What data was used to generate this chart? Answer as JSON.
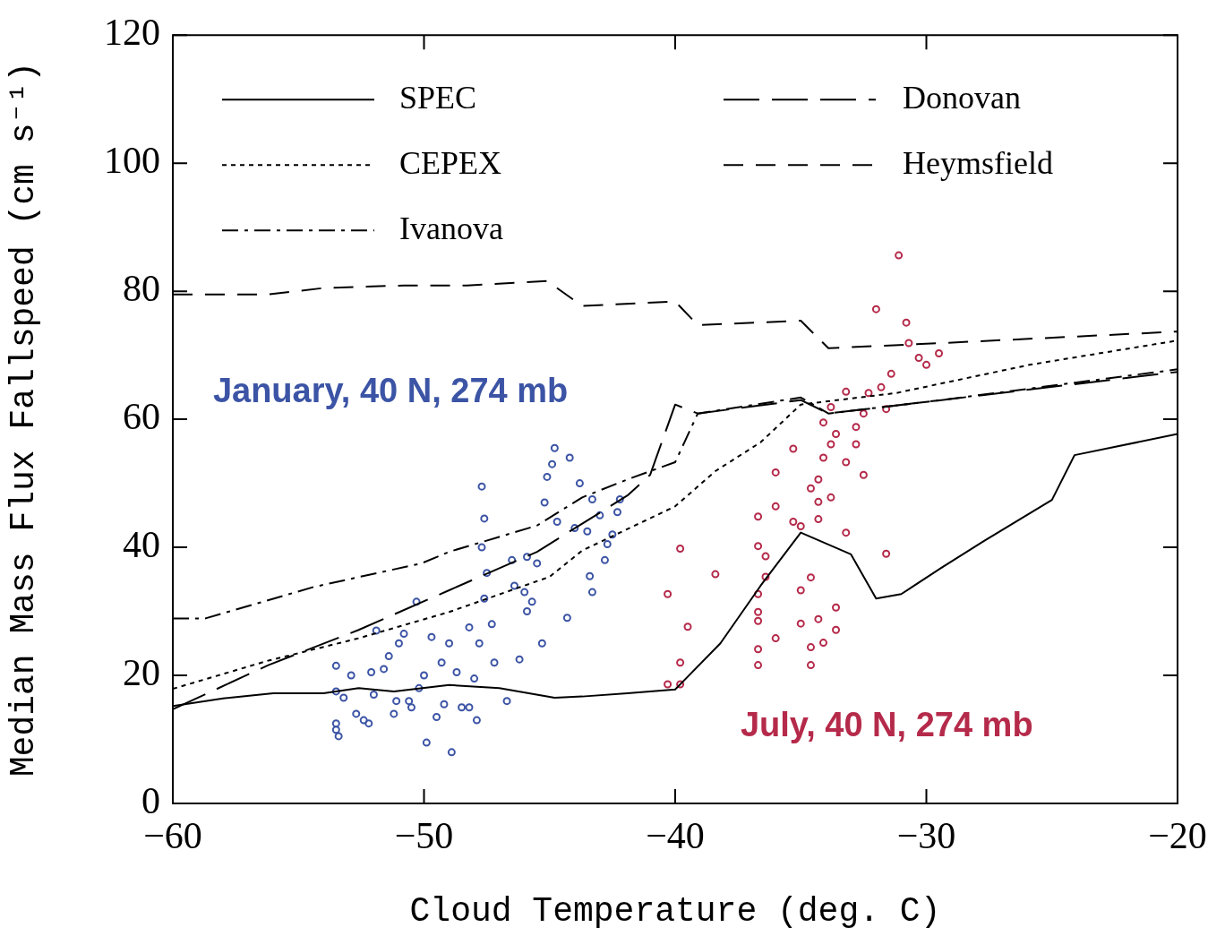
{
  "chart_data": {
    "type": "line",
    "xlabel": "Cloud Temperature (deg. C)",
    "ylabel": "Median Mass Flux Fallspeed (cm s⁻¹)",
    "xlim": [
      -60,
      -20
    ],
    "xticks": [
      -60,
      -50,
      -40,
      -30,
      -20
    ],
    "ylim": [
      0,
      120
    ],
    "yticks": [
      0,
      20,
      40,
      60,
      80,
      100,
      120
    ],
    "grid": false,
    "legend": "top",
    "marker": "none",
    "series": [
      {
        "name": "SPEC",
        "color": "#000000",
        "line_style": "solid",
        "x": [
          -60,
          -58,
          -56,
          -54,
          -52.6,
          -51.2,
          -49,
          -47,
          -44.8,
          -43.7,
          -41.9,
          -40,
          -38.2,
          -36.6,
          -35,
          -33,
          -32,
          -31,
          -29.4,
          -27.7,
          -25,
          -24.1,
          -20
        ],
        "values": [
          15.2,
          16.4,
          17.2,
          17.2,
          18,
          17.5,
          18.5,
          18,
          16.5,
          16.7,
          17.2,
          17.8,
          25,
          34,
          42.3,
          38.9,
          32,
          32.7,
          36.8,
          41,
          47.4,
          54.4,
          57.7
        ]
      },
      {
        "name": "CEPEX",
        "color": "#000000",
        "line_style": "dotted",
        "x": [
          -60,
          -56.2,
          -52.6,
          -49,
          -45,
          -43.7,
          -40,
          -38.4,
          -36.6,
          -35,
          -31.2,
          -25.9,
          -20
        ],
        "values": [
          17.9,
          22.3,
          25.8,
          29.9,
          35.4,
          39.5,
          46.4,
          51.9,
          56.4,
          62.3,
          64.1,
          68.5,
          72.3
        ]
      },
      {
        "name": "Ivanova",
        "color": "#000000",
        "line_style": "dashdot",
        "x": [
          -60,
          -58.7,
          -54.4,
          -50.1,
          -49,
          -45.5,
          -43.7,
          -41.9,
          -40,
          -39.1,
          -35,
          -33.9,
          -29.4,
          -20
        ],
        "values": [
          28.9,
          28.9,
          33.8,
          37.5,
          39.3,
          43.4,
          47.8,
          50.6,
          53.3,
          60.9,
          63.4,
          60.9,
          63,
          67.8
        ]
      },
      {
        "name": "Donovan",
        "color": "#000000",
        "line_style": "longdash",
        "x": [
          -60,
          -56.2,
          -52.6,
          -49,
          -45.5,
          -43.7,
          -41.9,
          -41,
          -40,
          -39.1,
          -35,
          -33.9,
          -29.4,
          -20
        ],
        "values": [
          14.7,
          21.6,
          27.1,
          33.3,
          39.3,
          43.7,
          48.1,
          51.3,
          62.3,
          60.9,
          63,
          60.9,
          63,
          67.4
        ]
      },
      {
        "name": "Heymsfield",
        "color": "#000000",
        "line_style": "dashed",
        "x": [
          -60,
          -56.2,
          -54,
          -50.8,
          -48.3,
          -45.1,
          -43.7,
          -40,
          -39.1,
          -35,
          -33.9,
          -29.4,
          -20
        ],
        "values": [
          79.5,
          79.5,
          80.5,
          80.9,
          80.9,
          81.6,
          77.7,
          78.4,
          74.7,
          75.4,
          71.1,
          71.9,
          73.7
        ]
      },
      {
        "name": "January, 40 N, 274 mb",
        "type": "scatter",
        "marker": "circle",
        "color": "#3c54a5",
        "x": [
          -53.5,
          -53.5,
          -53.5,
          -53.5,
          -53.4,
          -53.2,
          -52.9,
          -52.7,
          -52.4,
          -52.2,
          -52.1,
          -52,
          -51.9,
          -51.6,
          -51.4,
          -51.2,
          -51.1,
          -51,
          -50.8,
          -50.6,
          -50.5,
          -50.3,
          -50.2,
          -50,
          -49.9,
          -49.7,
          -49.5,
          -49.3,
          -49.2,
          -49,
          -48.9,
          -48.7,
          -48.5,
          -48.2,
          -48.2,
          -48,
          -47.9,
          -47.8,
          -47.6,
          -47.5,
          -47.3,
          -47.2,
          -47.7,
          -47.6,
          -47.7,
          -46.7,
          -46.5,
          -46.4,
          -46.2,
          -46,
          -45.9,
          -45.9,
          -45.7,
          -45.5,
          -45.3,
          -45.2,
          -45.1,
          -44.9,
          -44.7,
          -44.8,
          -44.3,
          -44.2,
          -44,
          -43.8,
          -43.5,
          -43.4,
          -43.3,
          -43.3,
          -43,
          -42.8,
          -42.7,
          -42.5,
          -42.2,
          -42.3
        ],
        "values": [
          21.5,
          17.5,
          12.5,
          11.5,
          10.5,
          16.5,
          20,
          14,
          13,
          12.5,
          20.5,
          17,
          27,
          21,
          23,
          14,
          16,
          25,
          26.5,
          16,
          15,
          31.5,
          18,
          20,
          9.5,
          26,
          13.5,
          22,
          15.5,
          25,
          8,
          20.5,
          15,
          27.5,
          15,
          19.5,
          13,
          25,
          32,
          36,
          28,
          22,
          40,
          44.5,
          49.5,
          16,
          38,
          34,
          22.5,
          33,
          30,
          38.5,
          31.5,
          37.5,
          25,
          47,
          51,
          53,
          44,
          55.5,
          29,
          54,
          43,
          50,
          42.5,
          35.5,
          33,
          47.5,
          45,
          38,
          40.5,
          42,
          47.5,
          45.5
        ]
      },
      {
        "name": "July, 40 N, 274 mb",
        "type": "scatter",
        "marker": "circle",
        "color": "#b52a4a",
        "x": [
          -40.3,
          -40.3,
          -39.8,
          -39.8,
          -39.8,
          -39.5,
          -38.4,
          -36.7,
          -36.7,
          -36.7,
          -36.7,
          -36.7,
          -36.7,
          -36.7,
          -36.4,
          -36.4,
          -36,
          -36,
          -36,
          -35.3,
          -35.3,
          -35,
          -35,
          -35,
          -34.6,
          -34.6,
          -34.6,
          -34.6,
          -34.3,
          -34.3,
          -34.3,
          -34.3,
          -34.1,
          -34.1,
          -34.1,
          -33.8,
          -33.8,
          -33.8,
          -33.6,
          -33.6,
          -33.6,
          -33.2,
          -33.2,
          -33.2,
          -32.8,
          -32.8,
          -32.5,
          -32.5,
          -32.3,
          -32,
          -31.8,
          -31.6,
          -31.6,
          -31.4,
          -31.1,
          -30.8,
          -30.7,
          -30.3,
          -30,
          -29.5
        ],
        "values": [
          18.6,
          32.7,
          18.6,
          22,
          39.8,
          27.6,
          35.8,
          32.7,
          28.5,
          21.6,
          24.1,
          29.9,
          40.2,
          44.8,
          35.4,
          38.6,
          25.8,
          46.4,
          51.7,
          55.4,
          44,
          28.1,
          33.3,
          43.3,
          24.4,
          49.2,
          35.3,
          21.6,
          47.1,
          44.4,
          50.6,
          28.8,
          54,
          59.5,
          25.1,
          61.9,
          47.8,
          56.1,
          30.6,
          27.1,
          57.7,
          64.3,
          53.3,
          42.3,
          58.8,
          56.1,
          60.9,
          51.3,
          64.1,
          77.2,
          65,
          39,
          61.6,
          67.1,
          85.6,
          75.1,
          71.9,
          69.6,
          68.5,
          70.3
        ]
      }
    ]
  }
}
